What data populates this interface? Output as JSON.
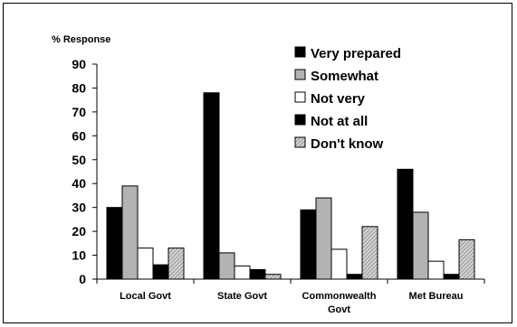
{
  "chart_data": {
    "type": "bar",
    "ylabel": "% Response",
    "xlabel": "",
    "ylim": [
      0,
      90
    ],
    "yticks": [
      0,
      10,
      20,
      30,
      40,
      50,
      60,
      70,
      80,
      90
    ],
    "categories": [
      [
        "Local Govt"
      ],
      [
        "State Govt"
      ],
      [
        "Commonwealth",
        "Govt"
      ],
      [
        "Met Bureau"
      ]
    ],
    "series": [
      {
        "name": "Very prepared",
        "values": [
          30,
          78,
          29,
          46
        ],
        "color": "#000000",
        "pattern": "solid"
      },
      {
        "name": "Somewhat",
        "values": [
          39,
          11,
          34,
          28
        ],
        "color": "#b3b3b3",
        "pattern": "solid"
      },
      {
        "name": "Not very",
        "values": [
          13,
          5.5,
          12.5,
          7.5
        ],
        "color": "#ffffff",
        "pattern": "solid"
      },
      {
        "name": "Not at all",
        "values": [
          6,
          4,
          2,
          2
        ],
        "color": "#000000",
        "pattern": "solid"
      },
      {
        "name": "Don't know",
        "values": [
          13,
          2,
          22,
          16.5
        ],
        "color": "#a8a8a8",
        "pattern": "hatched"
      }
    ],
    "grid": false,
    "legend_position": "top-right"
  }
}
